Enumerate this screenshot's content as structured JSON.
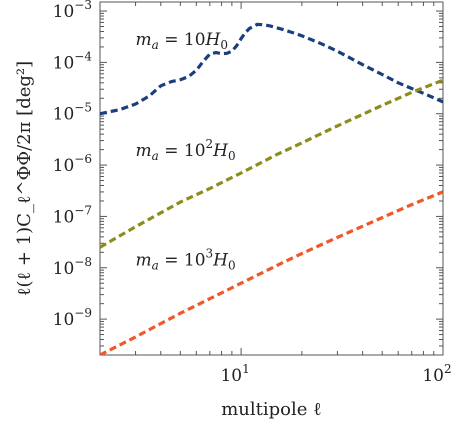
{
  "chart_data": {
    "type": "line",
    "xlabel": "multipole ℓ",
    "ylabel": "ℓ(ℓ + 1)C_ℓ^ΦΦ/2π   [deg²]",
    "xscale": "log",
    "yscale": "log",
    "xlim": [
      2,
      100
    ],
    "ylim": [
      2e-10,
      0.0015
    ],
    "xticks": [
      {
        "value": 10,
        "base": "10",
        "exp": "1"
      },
      {
        "value": 100,
        "base": "10",
        "exp": "2"
      }
    ],
    "yticks": [
      {
        "value": 0.001,
        "base": "10",
        "exp": "−3"
      },
      {
        "value": 0.0001,
        "base": "10",
        "exp": "−4"
      },
      {
        "value": 1e-05,
        "base": "10",
        "exp": "−5"
      },
      {
        "value": 1e-06,
        "base": "10",
        "exp": "−6"
      },
      {
        "value": 1e-07,
        "base": "10",
        "exp": "−7"
      },
      {
        "value": 1e-08,
        "base": "10",
        "exp": "−8"
      },
      {
        "value": 1e-09,
        "base": "10",
        "exp": "−9"
      }
    ],
    "grid": false,
    "legend": "none",
    "series": [
      {
        "color": "#1b3f7d",
        "x": [
          2,
          2.5,
          3,
          3.5,
          4,
          4.5,
          5,
          5.5,
          6,
          6.5,
          7,
          7.5,
          8,
          8.5,
          9,
          9.5,
          10,
          10.5,
          11,
          12,
          13,
          14,
          16,
          18,
          20,
          25,
          30,
          40,
          50,
          60,
          70,
          80,
          100
        ],
        "y": [
          1e-05,
          1.2e-05,
          1.55e-05,
          2.2e-05,
          3.5e-05,
          4.2e-05,
          4.6e-05,
          5.3e-05,
          7e-05,
          0.000105,
          0.000145,
          0.000155,
          0.000148,
          0.00015,
          0.000165,
          0.00021,
          0.00029,
          0.00038,
          0.00046,
          0.00055,
          0.00054,
          0.00051,
          0.00044,
          0.00038,
          0.00033,
          0.00023,
          0.000165,
          9e-05,
          5.8e-05,
          4e-05,
          3.1e-05,
          2.5e-05,
          1.7e-05
        ]
      },
      {
        "color": "#8e8c1b",
        "x": [
          2,
          3,
          5,
          7,
          10,
          15,
          20,
          30,
          50,
          70,
          100
        ],
        "y": [
          2.5e-08,
          6.3e-08,
          1.9e-07,
          3.5e-07,
          7e-07,
          1.6e-06,
          2.7e-06,
          5.8e-06,
          1.45e-05,
          2.6e-05,
          4.5e-05
        ]
      },
      {
        "color": "#f0582a",
        "x": [
          2,
          3,
          5,
          7,
          10,
          15,
          20,
          30,
          50,
          70,
          100
        ],
        "y": [
          2e-10,
          4.5e-10,
          1.3e-09,
          2.5e-09,
          5e-09,
          1.1e-08,
          1.9e-08,
          3.9e-08,
          9.5e-08,
          1.7e-07,
          3e-07
        ]
      }
    ],
    "annotations": [
      {
        "label_lhs": "m",
        "label_sub": "a",
        "label_eq": " = 10",
        "label_exp": "",
        "label_rhs": "H",
        "label_rsub": "0",
        "at_x": 3.0,
        "at_y": 0.00022
      },
      {
        "label_lhs": "m",
        "label_sub": "a",
        "label_eq": " = 10",
        "label_exp": "2",
        "label_rhs": "H",
        "label_rsub": "0",
        "at_x": 3.0,
        "at_y": 1.5e-06
      },
      {
        "label_lhs": "m",
        "label_sub": "a",
        "label_eq": " = 10",
        "label_exp": "3",
        "label_rhs": "H",
        "label_rsub": "0",
        "at_x": 3.0,
        "at_y": 1.1e-08
      }
    ]
  }
}
